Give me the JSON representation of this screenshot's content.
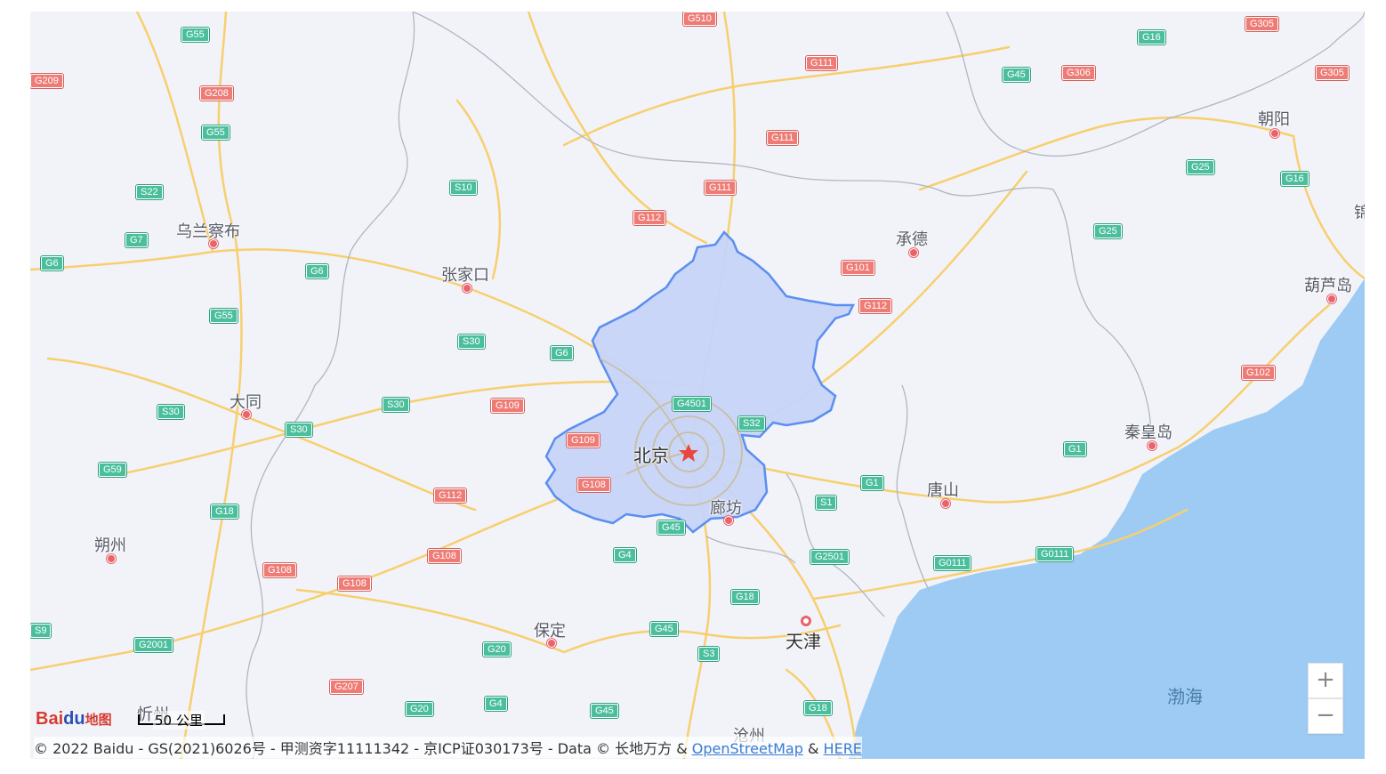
{
  "map": {
    "cities": [
      {
        "id": "beijing",
        "label": "北京",
        "capital": true
      },
      {
        "id": "tianjin",
        "label": "天津"
      },
      {
        "id": "zhangjiakou",
        "label": "张家口"
      },
      {
        "id": "wulanchabu",
        "label": "乌兰察布"
      },
      {
        "id": "datong",
        "label": "大同"
      },
      {
        "id": "shuozhou",
        "label": "朔州"
      },
      {
        "id": "xinzhou",
        "label": "忻州"
      },
      {
        "id": "baoding",
        "label": "保定"
      },
      {
        "id": "langfang",
        "label": "廊坊"
      },
      {
        "id": "chengde",
        "label": "承德"
      },
      {
        "id": "tangshan",
        "label": "唐山"
      },
      {
        "id": "qinhuangdao",
        "label": "秦皇岛"
      },
      {
        "id": "huludao",
        "label": "葫芦岛"
      },
      {
        "id": "chaoyang",
        "label": "朝阳"
      },
      {
        "id": "cangzhou",
        "label": "沧州"
      },
      {
        "id": "jin",
        "label": "锦"
      }
    ],
    "sea": {
      "label": "渤海"
    },
    "highlighted_region": "北京",
    "road_shields": [
      {
        "label": "G510",
        "type": "g"
      },
      {
        "label": "G55",
        "type": "s"
      },
      {
        "label": "G209",
        "type": "g"
      },
      {
        "label": "G208",
        "type": "g"
      },
      {
        "label": "G55",
        "type": "s"
      },
      {
        "label": "G111",
        "type": "g"
      },
      {
        "label": "G45",
        "type": "s"
      },
      {
        "label": "G306",
        "type": "g"
      },
      {
        "label": "G16",
        "type": "s"
      },
      {
        "label": "G305",
        "type": "g"
      },
      {
        "label": "G305",
        "type": "g"
      },
      {
        "label": "G111",
        "type": "g"
      },
      {
        "label": "S22",
        "type": "s"
      },
      {
        "label": "S10",
        "type": "s"
      },
      {
        "label": "G111",
        "type": "g"
      },
      {
        "label": "G25",
        "type": "s"
      },
      {
        "label": "G16",
        "type": "s"
      },
      {
        "label": "G112",
        "type": "g"
      },
      {
        "label": "G7",
        "type": "s"
      },
      {
        "label": "G25",
        "type": "s"
      },
      {
        "label": "G6",
        "type": "s"
      },
      {
        "label": "G6",
        "type": "s"
      },
      {
        "label": "G101",
        "type": "g"
      },
      {
        "label": "G112",
        "type": "g"
      },
      {
        "label": "G55",
        "type": "s"
      },
      {
        "label": "S30",
        "type": "s"
      },
      {
        "label": "G6",
        "type": "s"
      },
      {
        "label": "G102",
        "type": "g"
      },
      {
        "label": "G4501",
        "type": "s"
      },
      {
        "label": "S30",
        "type": "s"
      },
      {
        "label": "S30",
        "type": "s"
      },
      {
        "label": "G109",
        "type": "g"
      },
      {
        "label": "S32",
        "type": "s"
      },
      {
        "label": "S30",
        "type": "s"
      },
      {
        "label": "G109",
        "type": "g"
      },
      {
        "label": "G1",
        "type": "s"
      },
      {
        "label": "G59",
        "type": "s"
      },
      {
        "label": "G108",
        "type": "g"
      },
      {
        "label": "G1",
        "type": "s"
      },
      {
        "label": "G112",
        "type": "g"
      },
      {
        "label": "S1",
        "type": "s"
      },
      {
        "label": "G18",
        "type": "s"
      },
      {
        "label": "G45",
        "type": "s"
      },
      {
        "label": "G4",
        "type": "s"
      },
      {
        "label": "G108",
        "type": "g"
      },
      {
        "label": "G2501",
        "type": "s"
      },
      {
        "label": "G0111",
        "type": "s"
      },
      {
        "label": "G0111",
        "type": "s"
      },
      {
        "label": "G108",
        "type": "g"
      },
      {
        "label": "G108",
        "type": "g"
      },
      {
        "label": "G18",
        "type": "s"
      },
      {
        "label": "G45",
        "type": "s"
      },
      {
        "label": "S9",
        "type": "s"
      },
      {
        "label": "G2001",
        "type": "s"
      },
      {
        "label": "G20",
        "type": "s"
      },
      {
        "label": "S3",
        "type": "s"
      },
      {
        "label": "G207",
        "type": "g"
      },
      {
        "label": "G20",
        "type": "s"
      },
      {
        "label": "G4",
        "type": "s"
      },
      {
        "label": "G45",
        "type": "s"
      },
      {
        "label": "G18",
        "type": "s"
      }
    ],
    "zoom": {
      "in_label": "+",
      "out_label": "−"
    },
    "scale": {
      "label": "50 公里"
    },
    "logo": {
      "bai": "Bai",
      "du": "du",
      "cn": "地图"
    },
    "attribution": {
      "prefix": "© 2022 Baidu - GS(2021)6026号 - 甲测资字11111342 - 京ICP证030173号 - Data © 长地万方 & ",
      "osm": "OpenStreetMap",
      "amp": " & ",
      "here": "HERE"
    }
  },
  "colors": {
    "land": "#f1f3f9",
    "sea": "#9ecbf3",
    "road": "#f8cf6e",
    "border": "#b0b6c3",
    "region_fill": "#c6d4f8",
    "region_stroke": "#5b8ef0"
  }
}
